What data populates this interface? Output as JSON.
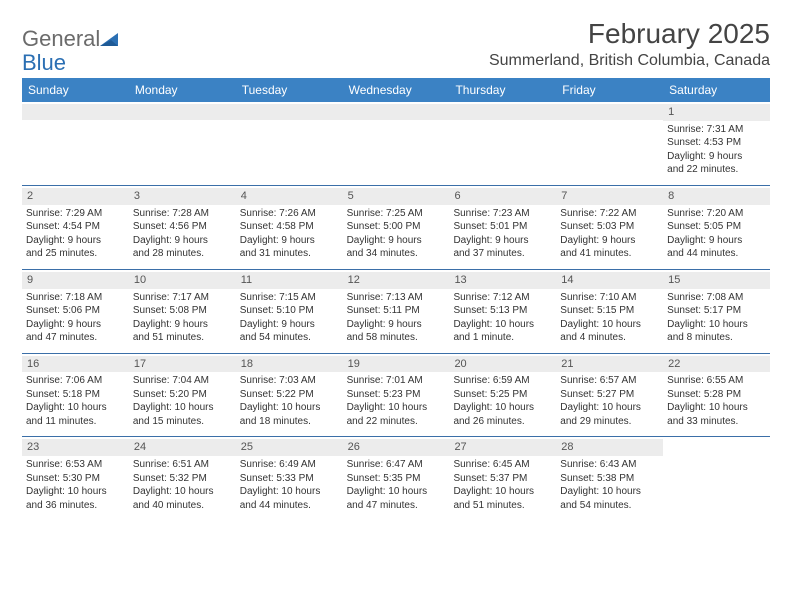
{
  "header": {
    "logo_general": "General",
    "logo_blue": "Blue",
    "month_title": "February 2025",
    "location": "Summerland, British Columbia, Canada"
  },
  "colors": {
    "header_bar": "#3b82c4",
    "row_border": "#3b6fa8",
    "daynum_bg": "#ececec",
    "text": "#333333",
    "logo_gray": "#6b6b6b",
    "logo_blue": "#2b6fb3"
  },
  "weekdays": [
    "Sunday",
    "Monday",
    "Tuesday",
    "Wednesday",
    "Thursday",
    "Friday",
    "Saturday"
  ],
  "weeks": [
    [
      {
        "empty": true
      },
      {
        "empty": true
      },
      {
        "empty": true
      },
      {
        "empty": true
      },
      {
        "empty": true
      },
      {
        "empty": true
      },
      {
        "day": "1",
        "sunrise": "Sunrise: 7:31 AM",
        "sunset": "Sunset: 4:53 PM",
        "daylight1": "Daylight: 9 hours",
        "daylight2": "and 22 minutes."
      }
    ],
    [
      {
        "day": "2",
        "sunrise": "Sunrise: 7:29 AM",
        "sunset": "Sunset: 4:54 PM",
        "daylight1": "Daylight: 9 hours",
        "daylight2": "and 25 minutes."
      },
      {
        "day": "3",
        "sunrise": "Sunrise: 7:28 AM",
        "sunset": "Sunset: 4:56 PM",
        "daylight1": "Daylight: 9 hours",
        "daylight2": "and 28 minutes."
      },
      {
        "day": "4",
        "sunrise": "Sunrise: 7:26 AM",
        "sunset": "Sunset: 4:58 PM",
        "daylight1": "Daylight: 9 hours",
        "daylight2": "and 31 minutes."
      },
      {
        "day": "5",
        "sunrise": "Sunrise: 7:25 AM",
        "sunset": "Sunset: 5:00 PM",
        "daylight1": "Daylight: 9 hours",
        "daylight2": "and 34 minutes."
      },
      {
        "day": "6",
        "sunrise": "Sunrise: 7:23 AM",
        "sunset": "Sunset: 5:01 PM",
        "daylight1": "Daylight: 9 hours",
        "daylight2": "and 37 minutes."
      },
      {
        "day": "7",
        "sunrise": "Sunrise: 7:22 AM",
        "sunset": "Sunset: 5:03 PM",
        "daylight1": "Daylight: 9 hours",
        "daylight2": "and 41 minutes."
      },
      {
        "day": "8",
        "sunrise": "Sunrise: 7:20 AM",
        "sunset": "Sunset: 5:05 PM",
        "daylight1": "Daylight: 9 hours",
        "daylight2": "and 44 minutes."
      }
    ],
    [
      {
        "day": "9",
        "sunrise": "Sunrise: 7:18 AM",
        "sunset": "Sunset: 5:06 PM",
        "daylight1": "Daylight: 9 hours",
        "daylight2": "and 47 minutes."
      },
      {
        "day": "10",
        "sunrise": "Sunrise: 7:17 AM",
        "sunset": "Sunset: 5:08 PM",
        "daylight1": "Daylight: 9 hours",
        "daylight2": "and 51 minutes."
      },
      {
        "day": "11",
        "sunrise": "Sunrise: 7:15 AM",
        "sunset": "Sunset: 5:10 PM",
        "daylight1": "Daylight: 9 hours",
        "daylight2": "and 54 minutes."
      },
      {
        "day": "12",
        "sunrise": "Sunrise: 7:13 AM",
        "sunset": "Sunset: 5:11 PM",
        "daylight1": "Daylight: 9 hours",
        "daylight2": "and 58 minutes."
      },
      {
        "day": "13",
        "sunrise": "Sunrise: 7:12 AM",
        "sunset": "Sunset: 5:13 PM",
        "daylight1": "Daylight: 10 hours",
        "daylight2": "and 1 minute."
      },
      {
        "day": "14",
        "sunrise": "Sunrise: 7:10 AM",
        "sunset": "Sunset: 5:15 PM",
        "daylight1": "Daylight: 10 hours",
        "daylight2": "and 4 minutes."
      },
      {
        "day": "15",
        "sunrise": "Sunrise: 7:08 AM",
        "sunset": "Sunset: 5:17 PM",
        "daylight1": "Daylight: 10 hours",
        "daylight2": "and 8 minutes."
      }
    ],
    [
      {
        "day": "16",
        "sunrise": "Sunrise: 7:06 AM",
        "sunset": "Sunset: 5:18 PM",
        "daylight1": "Daylight: 10 hours",
        "daylight2": "and 11 minutes."
      },
      {
        "day": "17",
        "sunrise": "Sunrise: 7:04 AM",
        "sunset": "Sunset: 5:20 PM",
        "daylight1": "Daylight: 10 hours",
        "daylight2": "and 15 minutes."
      },
      {
        "day": "18",
        "sunrise": "Sunrise: 7:03 AM",
        "sunset": "Sunset: 5:22 PM",
        "daylight1": "Daylight: 10 hours",
        "daylight2": "and 18 minutes."
      },
      {
        "day": "19",
        "sunrise": "Sunrise: 7:01 AM",
        "sunset": "Sunset: 5:23 PM",
        "daylight1": "Daylight: 10 hours",
        "daylight2": "and 22 minutes."
      },
      {
        "day": "20",
        "sunrise": "Sunrise: 6:59 AM",
        "sunset": "Sunset: 5:25 PM",
        "daylight1": "Daylight: 10 hours",
        "daylight2": "and 26 minutes."
      },
      {
        "day": "21",
        "sunrise": "Sunrise: 6:57 AM",
        "sunset": "Sunset: 5:27 PM",
        "daylight1": "Daylight: 10 hours",
        "daylight2": "and 29 minutes."
      },
      {
        "day": "22",
        "sunrise": "Sunrise: 6:55 AM",
        "sunset": "Sunset: 5:28 PM",
        "daylight1": "Daylight: 10 hours",
        "daylight2": "and 33 minutes."
      }
    ],
    [
      {
        "day": "23",
        "sunrise": "Sunrise: 6:53 AM",
        "sunset": "Sunset: 5:30 PM",
        "daylight1": "Daylight: 10 hours",
        "daylight2": "and 36 minutes."
      },
      {
        "day": "24",
        "sunrise": "Sunrise: 6:51 AM",
        "sunset": "Sunset: 5:32 PM",
        "daylight1": "Daylight: 10 hours",
        "daylight2": "and 40 minutes."
      },
      {
        "day": "25",
        "sunrise": "Sunrise: 6:49 AM",
        "sunset": "Sunset: 5:33 PM",
        "daylight1": "Daylight: 10 hours",
        "daylight2": "and 44 minutes."
      },
      {
        "day": "26",
        "sunrise": "Sunrise: 6:47 AM",
        "sunset": "Sunset: 5:35 PM",
        "daylight1": "Daylight: 10 hours",
        "daylight2": "and 47 minutes."
      },
      {
        "day": "27",
        "sunrise": "Sunrise: 6:45 AM",
        "sunset": "Sunset: 5:37 PM",
        "daylight1": "Daylight: 10 hours",
        "daylight2": "and 51 minutes."
      },
      {
        "day": "28",
        "sunrise": "Sunrise: 6:43 AM",
        "sunset": "Sunset: 5:38 PM",
        "daylight1": "Daylight: 10 hours",
        "daylight2": "and 54 minutes."
      },
      {
        "empty": true,
        "noBar": true
      }
    ]
  ]
}
